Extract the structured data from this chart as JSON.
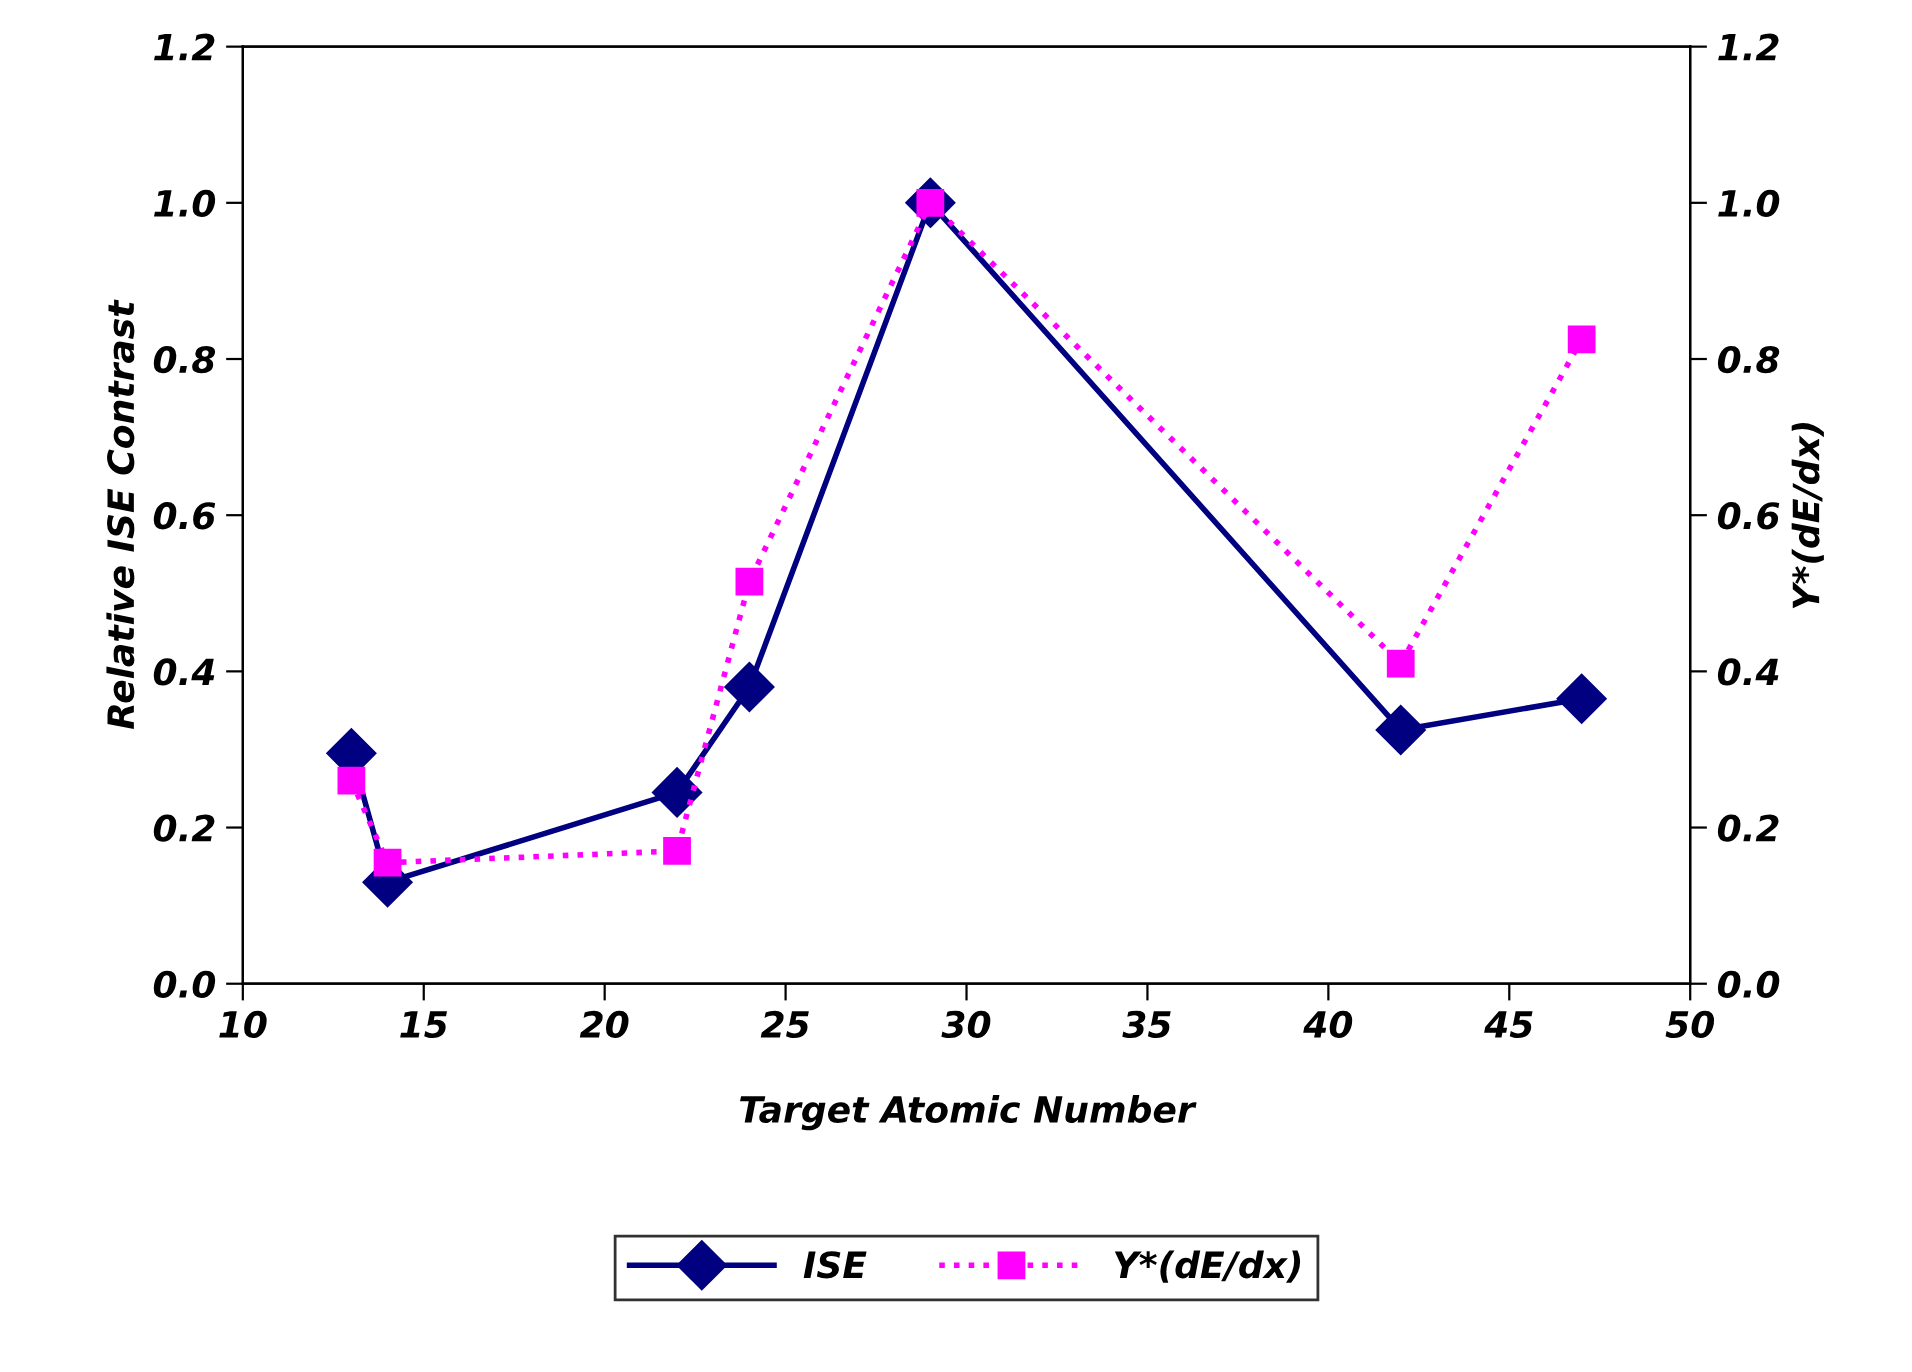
{
  "chart_data": {
    "type": "line",
    "xlabel": "Target Atomic Number",
    "ylabel": "Relative ISE Contrast",
    "y2label": "Y*(dE/dx)",
    "xlim": [
      10,
      50
    ],
    "xticks": [
      10,
      15,
      20,
      25,
      30,
      35,
      40,
      45,
      50
    ],
    "ylim": [
      0,
      1.2
    ],
    "yticks": [
      {
        "value": 0,
        "label": "0.0"
      },
      0.2,
      0.4,
      0.6,
      0.8,
      {
        "value": 1,
        "label": "1.0"
      },
      1.2
    ],
    "y2lim": [
      0,
      1.2
    ],
    "y2ticks": [
      {
        "value": 0,
        "label": "0.0"
      },
      0.2,
      0.4,
      0.6,
      0.8,
      {
        "value": 1,
        "label": "1.0"
      },
      1.2
    ],
    "grid": false,
    "legend": "bottom",
    "series": [
      {
        "name": "ISE",
        "color": "#000080",
        "marker": "diamond",
        "line_style": "solid",
        "x": [
          13,
          14,
          22,
          24,
          29,
          42,
          47
        ],
        "values": [
          0.295,
          0.13,
          0.245,
          0.38,
          1.0,
          0.325,
          0.365
        ]
      },
      {
        "name": "Y*(dE/dx)",
        "color": "#ff00ff",
        "marker": "square",
        "line_style": "dotted",
        "axis": "y2",
        "x": [
          13,
          14,
          22,
          24,
          29,
          42,
          47
        ],
        "values": [
          0.26,
          0.155,
          0.17,
          0.515,
          1.0,
          0.41,
          0.825
        ]
      }
    ]
  }
}
